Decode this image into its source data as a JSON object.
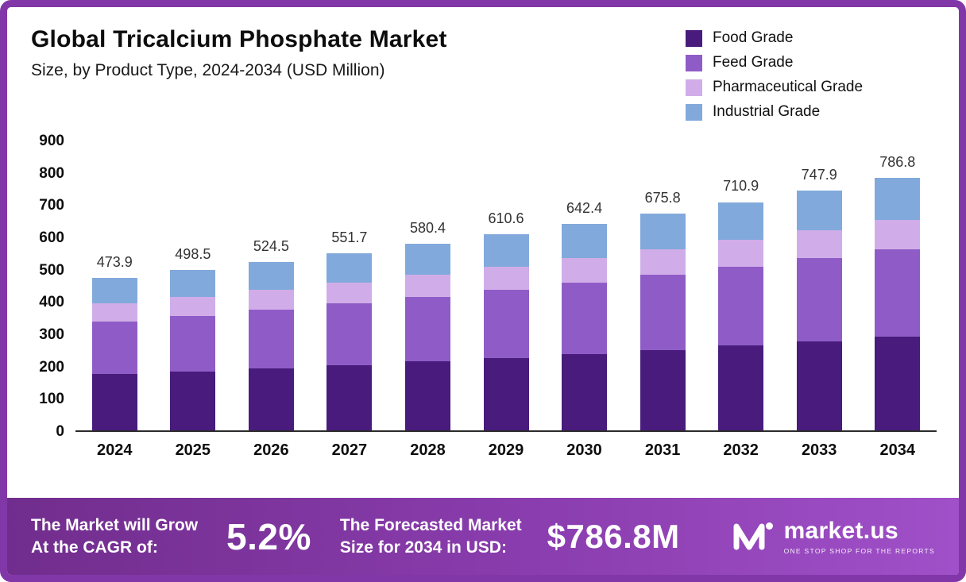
{
  "header": {
    "title": "Global Tricalcium Phosphate Market",
    "subtitle": "Size, by Product Type, 2024-2034 (USD Million)"
  },
  "chart_data": {
    "type": "bar",
    "stacked": true,
    "title": "Global Tricalcium Phosphate Market Size, by Product Type, 2024-2034 (USD Million)",
    "categories": [
      "2024",
      "2025",
      "2026",
      "2027",
      "2028",
      "2029",
      "2030",
      "2031",
      "2032",
      "2033",
      "2034"
    ],
    "series": [
      {
        "name": "Food Grade",
        "color": "#481b7c",
        "values": [
          175.0,
          184.0,
          194.0,
          204.0,
          215.0,
          226.0,
          238.0,
          250.5,
          263.5,
          277.0,
          291.5
        ]
      },
      {
        "name": "Feed Grade",
        "color": "#8f5cc7",
        "values": [
          165.0,
          173.0,
          182.0,
          191.5,
          201.5,
          212.0,
          223.0,
          234.5,
          247.0,
          260.0,
          273.5
        ]
      },
      {
        "name": "Pharmaceutical Grade",
        "color": "#d0ade8",
        "values": [
          55.0,
          58.0,
          61.0,
          64.0,
          67.5,
          71.0,
          74.5,
          78.5,
          82.5,
          87.0,
          91.5
        ]
      },
      {
        "name": "Industrial Grade",
        "color": "#82a9db",
        "values": [
          78.9,
          83.5,
          87.5,
          92.2,
          96.4,
          101.6,
          106.9,
          112.3,
          117.9,
          123.9,
          130.3
        ]
      }
    ],
    "totals": [
      473.9,
      498.5,
      524.5,
      551.7,
      580.4,
      610.6,
      642.4,
      675.8,
      710.9,
      747.9,
      786.8
    ],
    "xlabel": "",
    "ylabel": "",
    "ylim": [
      0,
      900
    ],
    "yticks": [
      0,
      100,
      200,
      300,
      400,
      500,
      600,
      700,
      800,
      900
    ],
    "grid": false,
    "legend_position": "top-right"
  },
  "footer": {
    "grow_line1": "The Market will Grow",
    "grow_line2": "At the CAGR of:",
    "cagr": "5.2%",
    "forecast_line1": "The Forecasted Market",
    "forecast_line2": "Size for 2034 in USD:",
    "forecast_value": "$786.8M",
    "brand": "market.us",
    "tagline": "ONE STOP SHOP FOR THE REPORTS"
  },
  "icons": {
    "logo": "market-us-logo"
  },
  "colors": {
    "border": "#8237a8",
    "footer_gradient_start": "#712d8d",
    "footer_gradient_end": "#a050c8",
    "axis_line": "#2b2b2b"
  }
}
